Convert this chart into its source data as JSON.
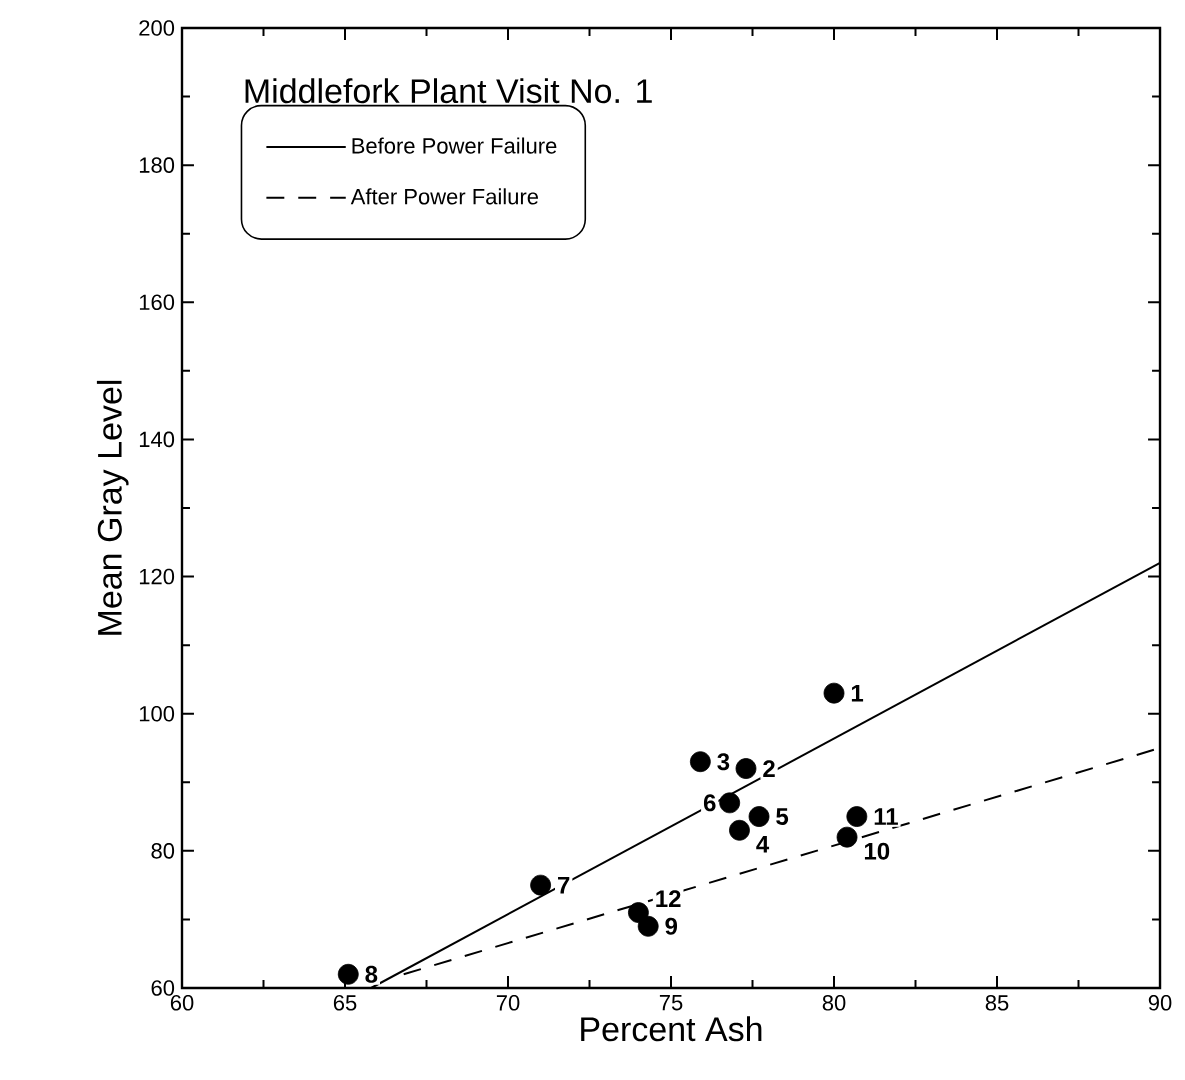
{
  "chart_data": {
    "type": "scatter",
    "title": "Middlefork Plant Visit No. 1",
    "xlabel": "Percent Ash",
    "ylabel": "Mean Gray Level",
    "xlim": [
      60,
      90
    ],
    "ylim": [
      60,
      200
    ],
    "xticks": [
      60,
      65,
      70,
      75,
      80,
      85,
      90
    ],
    "yticks": [
      60,
      80,
      100,
      120,
      140,
      160,
      180,
      200
    ],
    "legend": "top left",
    "grid": false,
    "series": [
      {
        "color": "#000000",
        "marker": "circle",
        "x": [
          80.0,
          77.3,
          75.9,
          77.1,
          77.7,
          76.8,
          71.0,
          65.1,
          74.3,
          80.4,
          80.7,
          74.0
        ],
        "values": [
          103,
          92,
          93,
          83,
          85,
          87,
          75,
          62,
          69,
          82,
          85,
          71
        ]
      },
      {
        "type": "line",
        "name": "Before Power Failure",
        "color": "#000000",
        "line_style": "solid",
        "marker": "none",
        "x": [
          65.8,
          90
        ],
        "values": [
          60,
          122
        ]
      },
      {
        "type": "line",
        "name": "After Power Failure",
        "color": "#000000",
        "line_style": "dashed",
        "marker": "none",
        "x": [
          66.8,
          90
        ],
        "values": [
          62,
          95
        ]
      }
    ],
    "annotations": [
      {
        "text": "1",
        "x": 80.0,
        "y": 103
      },
      {
        "text": "2",
        "x": 77.3,
        "y": 92
      },
      {
        "text": "3",
        "x": 75.9,
        "y": 93
      },
      {
        "text": "4",
        "x": 77.1,
        "y": 83
      },
      {
        "text": "5",
        "x": 77.7,
        "y": 85
      },
      {
        "text": "6",
        "x": 76.8,
        "y": 87
      },
      {
        "text": "7",
        "x": 71.0,
        "y": 75
      },
      {
        "text": "8",
        "x": 65.1,
        "y": 62
      },
      {
        "text": "9",
        "x": 74.3,
        "y": 69
      },
      {
        "text": "10",
        "x": 80.4,
        "y": 82
      },
      {
        "text": "11",
        "x": 80.7,
        "y": 85
      },
      {
        "text": "12",
        "x": 74.0,
        "y": 71
      }
    ]
  }
}
